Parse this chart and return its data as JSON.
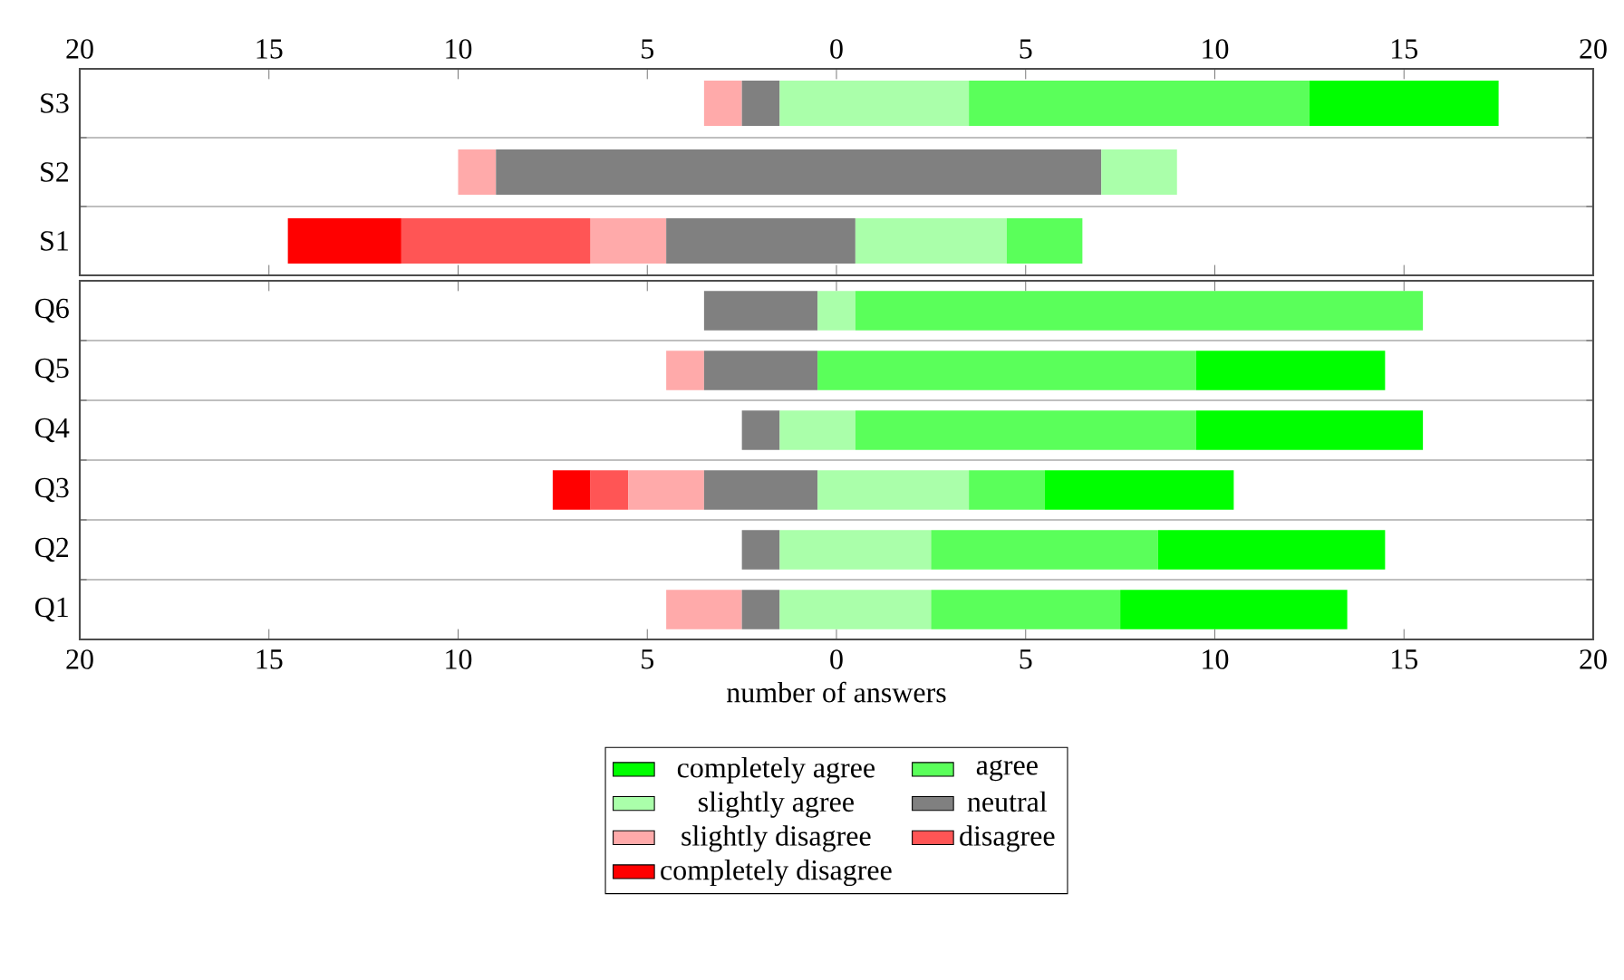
{
  "chart_data": [
    {
      "type": "bar",
      "orientation": "horizontal",
      "grid": "y",
      "categories": [
        "S3",
        "S2",
        "S1"
      ],
      "xlim": [
        -20,
        20
      ],
      "xticks": [
        {
          "value": -20,
          "label": "20"
        },
        {
          "value": -15,
          "label": "15"
        },
        {
          "value": -10,
          "label": "10"
        },
        {
          "value": -5,
          "label": "5"
        },
        0,
        5,
        10,
        15,
        20
      ],
      "series": [
        {
          "color": "#ff0000",
          "values": [
            null,
            null,
            3
          ],
          "base": [
            null,
            null,
            -14.5
          ]
        },
        {
          "color": "#ff5555",
          "values": [
            null,
            null,
            5
          ],
          "base": [
            null,
            null,
            -11.5
          ]
        },
        {
          "color": "#ffaaaa",
          "values": [
            1,
            1,
            2
          ],
          "base": [
            -3.5,
            -10,
            -6.5
          ]
        },
        {
          "color": "#808080",
          "values": [
            1,
            16,
            5
          ],
          "base": [
            -2.5,
            -9,
            -4.5
          ]
        },
        {
          "color": "#aaffaa",
          "values": [
            5,
            2,
            4
          ],
          "base": [
            -1.5,
            7,
            0.5
          ]
        },
        {
          "color": "#5aff5a",
          "values": [
            9,
            null,
            2
          ],
          "base": [
            3.5,
            null,
            4.5
          ]
        },
        {
          "color": "#00ff00",
          "values": [
            5,
            null,
            null
          ],
          "base": [
            12.5,
            null,
            null
          ]
        }
      ]
    },
    {
      "type": "bar",
      "orientation": "horizontal",
      "grid": "y",
      "legend": "bottom",
      "xlabel": "number of answers",
      "categories": [
        "Q6",
        "Q5",
        "Q4",
        "Q3",
        "Q2",
        "Q1"
      ],
      "xlim": [
        -20,
        20
      ],
      "xticks": [
        {
          "value": -20,
          "label": "20"
        },
        {
          "value": -15,
          "label": "15"
        },
        {
          "value": -10,
          "label": "10"
        },
        {
          "value": -5,
          "label": "5"
        },
        0,
        5,
        10,
        15,
        20
      ],
      "series": [
        {
          "name": "completely disagree",
          "color": "#ff0000",
          "values": [
            null,
            null,
            null,
            1,
            null,
            null
          ],
          "base": [
            null,
            null,
            null,
            -7.5,
            null,
            null
          ]
        },
        {
          "name": "disagree",
          "color": "#ff5555",
          "values": [
            null,
            null,
            null,
            1,
            null,
            null
          ],
          "base": [
            null,
            null,
            null,
            -6.5,
            null,
            null
          ]
        },
        {
          "name": "slightly disagree",
          "color": "#ffaaaa",
          "values": [
            null,
            1,
            null,
            2,
            null,
            2
          ],
          "base": [
            null,
            -4.5,
            null,
            -5.5,
            null,
            -4.5
          ]
        },
        {
          "name": "neutral",
          "color": "#808080",
          "values": [
            3,
            3,
            1,
            3,
            1,
            1
          ],
          "base": [
            -3.5,
            -3.5,
            -2.5,
            -3.5,
            -2.5,
            -2.5
          ]
        },
        {
          "name": "slightly agree",
          "color": "#aaffaa",
          "values": [
            1,
            null,
            2,
            4,
            4,
            4
          ],
          "base": [
            -0.5,
            null,
            -1.5,
            -0.5,
            -1.5,
            -1.5
          ]
        },
        {
          "name": "agree",
          "color": "#5aff5a",
          "values": [
            15,
            10,
            9,
            2,
            6,
            5
          ],
          "base": [
            0.5,
            -0.5,
            0.5,
            3.5,
            2.5,
            2.5
          ]
        },
        {
          "name": "completely agree",
          "color": "#00ff00",
          "values": [
            null,
            5,
            6,
            5,
            6,
            6
          ],
          "base": [
            null,
            9.5,
            9.5,
            5.5,
            8.5,
            7.5
          ]
        }
      ]
    }
  ]
}
